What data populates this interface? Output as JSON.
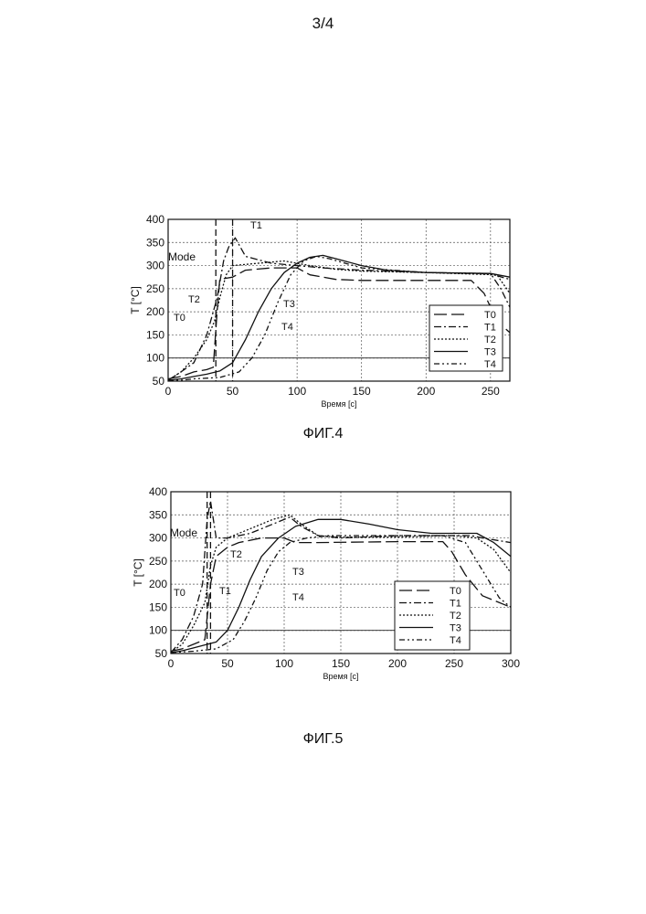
{
  "page": {
    "number": "3/4"
  },
  "figures": [
    {
      "caption": "ФИГ.4"
    },
    {
      "caption": "ФИГ.5"
    }
  ],
  "chart_data": [
    {
      "type": "line",
      "title": "",
      "xlabel": "Время [с]",
      "ylabel": "T [°C]",
      "xlim": [
        0,
        265
      ],
      "ylim": [
        50,
        400
      ],
      "xticks": [
        0,
        50,
        100,
        150,
        200,
        250
      ],
      "yticks": [
        50,
        100,
        150,
        200,
        250,
        300,
        350,
        400
      ],
      "grid": true,
      "legend_position": "bottom-right",
      "mode_label": "Mode",
      "mode_lines_x": [
        37,
        50
      ],
      "annotations": [
        "T1",
        "T2",
        "T0",
        "T3",
        "T4"
      ],
      "series": [
        {
          "name": "T0",
          "points": [
            [
              0,
              55
            ],
            [
              10,
              60
            ],
            [
              20,
              70
            ],
            [
              30,
              75
            ],
            [
              35,
              80
            ],
            [
              38,
              200
            ],
            [
              40,
              270
            ],
            [
              50,
              275
            ],
            [
              60,
              290
            ],
            [
              80,
              295
            ],
            [
              100,
              295
            ],
            [
              110,
              280
            ],
            [
              130,
              270
            ],
            [
              150,
              268
            ],
            [
              200,
              268
            ],
            [
              235,
              268
            ],
            [
              245,
              240
            ],
            [
              255,
              180
            ],
            [
              265,
              155
            ]
          ]
        },
        {
          "name": "T1",
          "points": [
            [
              0,
              52
            ],
            [
              10,
              70
            ],
            [
              20,
              90
            ],
            [
              30,
              150
            ],
            [
              38,
              230
            ],
            [
              43,
              310
            ],
            [
              47,
              340
            ],
            [
              52,
              360
            ],
            [
              60,
              320
            ],
            [
              80,
              305
            ],
            [
              100,
              300
            ],
            [
              120,
              295
            ],
            [
              150,
              290
            ],
            [
              200,
              285
            ],
            [
              250,
              283
            ],
            [
              258,
              250
            ],
            [
              265,
              210
            ]
          ]
        },
        {
          "name": "T2",
          "points": [
            [
              0,
              52
            ],
            [
              10,
              70
            ],
            [
              20,
              100
            ],
            [
              30,
              140
            ],
            [
              36,
              180
            ],
            [
              40,
              230
            ],
            [
              45,
              280
            ],
            [
              50,
              300
            ],
            [
              70,
              305
            ],
            [
              90,
              310
            ],
            [
              110,
              300
            ],
            [
              130,
              292
            ],
            [
              150,
              288
            ],
            [
              200,
              285
            ],
            [
              255,
              280
            ],
            [
              260,
              260
            ],
            [
              265,
              240
            ]
          ]
        },
        {
          "name": "T3",
          "points": [
            [
              0,
              52
            ],
            [
              10,
              55
            ],
            [
              20,
              60
            ],
            [
              30,
              65
            ],
            [
              40,
              72
            ],
            [
              50,
              90
            ],
            [
              60,
              140
            ],
            [
              70,
              200
            ],
            [
              80,
              250
            ],
            [
              90,
              285
            ],
            [
              100,
              305
            ],
            [
              110,
              318
            ],
            [
              120,
              322
            ],
            [
              130,
              315
            ],
            [
              150,
              300
            ],
            [
              170,
              290
            ],
            [
              200,
              285
            ],
            [
              250,
              283
            ],
            [
              265,
              275
            ]
          ]
        },
        {
          "name": "T4",
          "points": [
            [
              0,
              52
            ],
            [
              10,
              52
            ],
            [
              20,
              55
            ],
            [
              40,
              58
            ],
            [
              55,
              70
            ],
            [
              65,
              100
            ],
            [
              75,
              150
            ],
            [
              85,
              220
            ],
            [
              95,
              280
            ],
            [
              105,
              310
            ],
            [
              115,
              320
            ],
            [
              125,
              315
            ],
            [
              150,
              295
            ],
            [
              200,
              285
            ],
            [
              250,
              282
            ],
            [
              265,
              270
            ]
          ]
        }
      ]
    },
    {
      "type": "line",
      "title": "",
      "xlabel": "Время [с]",
      "ylabel": "T [°C]",
      "xlim": [
        0,
        300
      ],
      "ylim": [
        50,
        400
      ],
      "xticks": [
        0,
        50,
        100,
        150,
        200,
        250,
        300
      ],
      "yticks": [
        50,
        100,
        150,
        200,
        250,
        300,
        350,
        400
      ],
      "grid": true,
      "legend_position": "bottom-right",
      "mode_label": "Mode",
      "mode_lines_x": [
        32,
        35
      ],
      "annotations": [
        "T2",
        "T3",
        "T0",
        "T1",
        "T4"
      ],
      "series": [
        {
          "name": "T0",
          "points": [
            [
              0,
              55
            ],
            [
              10,
              60
            ],
            [
              20,
              70
            ],
            [
              30,
              80
            ],
            [
              35,
              200
            ],
            [
              40,
              260
            ],
            [
              50,
              280
            ],
            [
              60,
              290
            ],
            [
              80,
              300
            ],
            [
              100,
              300
            ],
            [
              110,
              290
            ],
            [
              130,
              290
            ],
            [
              200,
              292
            ],
            [
              240,
              292
            ],
            [
              248,
              270
            ],
            [
              260,
              220
            ],
            [
              275,
              175
            ],
            [
              300,
              150
            ]
          ]
        },
        {
          "name": "T1",
          "points": [
            [
              0,
              52
            ],
            [
              10,
              80
            ],
            [
              20,
              130
            ],
            [
              28,
              200
            ],
            [
              32,
              340
            ],
            [
              35,
              380
            ],
            [
              40,
              300
            ],
            [
              50,
              300
            ],
            [
              70,
              310
            ],
            [
              90,
              330
            ],
            [
              105,
              345
            ],
            [
              115,
              325
            ],
            [
              130,
              305
            ],
            [
              150,
              300
            ],
            [
              200,
              305
            ],
            [
              250,
              305
            ],
            [
              265,
              305
            ],
            [
              275,
              300
            ],
            [
              300,
              290
            ]
          ]
        },
        {
          "name": "T2",
          "points": [
            [
              0,
              52
            ],
            [
              10,
              70
            ],
            [
              20,
              110
            ],
            [
              30,
              160
            ],
            [
              35,
              240
            ],
            [
              40,
              280
            ],
            [
              50,
              300
            ],
            [
              70,
              320
            ],
            [
              90,
              340
            ],
            [
              105,
              350
            ],
            [
              115,
              330
            ],
            [
              130,
              305
            ],
            [
              150,
              302
            ],
            [
              200,
              302
            ],
            [
              250,
              305
            ],
            [
              270,
              300
            ],
            [
              285,
              275
            ],
            [
              300,
              225
            ]
          ]
        },
        {
          "name": "T3",
          "points": [
            [
              0,
              52
            ],
            [
              10,
              56
            ],
            [
              20,
              62
            ],
            [
              40,
              75
            ],
            [
              50,
              100
            ],
            [
              60,
              150
            ],
            [
              70,
              210
            ],
            [
              80,
              260
            ],
            [
              95,
              300
            ],
            [
              110,
              325
            ],
            [
              130,
              340
            ],
            [
              150,
              340
            ],
            [
              175,
              330
            ],
            [
              200,
              318
            ],
            [
              230,
              310
            ],
            [
              270,
              310
            ],
            [
              285,
              290
            ],
            [
              300,
              260
            ]
          ]
        },
        {
          "name": "T4",
          "points": [
            [
              0,
              52
            ],
            [
              20,
              55
            ],
            [
              40,
              60
            ],
            [
              55,
              80
            ],
            [
              65,
              120
            ],
            [
              75,
              170
            ],
            [
              85,
              230
            ],
            [
              95,
              270
            ],
            [
              105,
              290
            ],
            [
              120,
              300
            ],
            [
              140,
              305
            ],
            [
              200,
              305
            ],
            [
              240,
              305
            ],
            [
              260,
              290
            ],
            [
              275,
              230
            ],
            [
              290,
              170
            ],
            [
              300,
              150
            ]
          ]
        }
      ]
    }
  ]
}
